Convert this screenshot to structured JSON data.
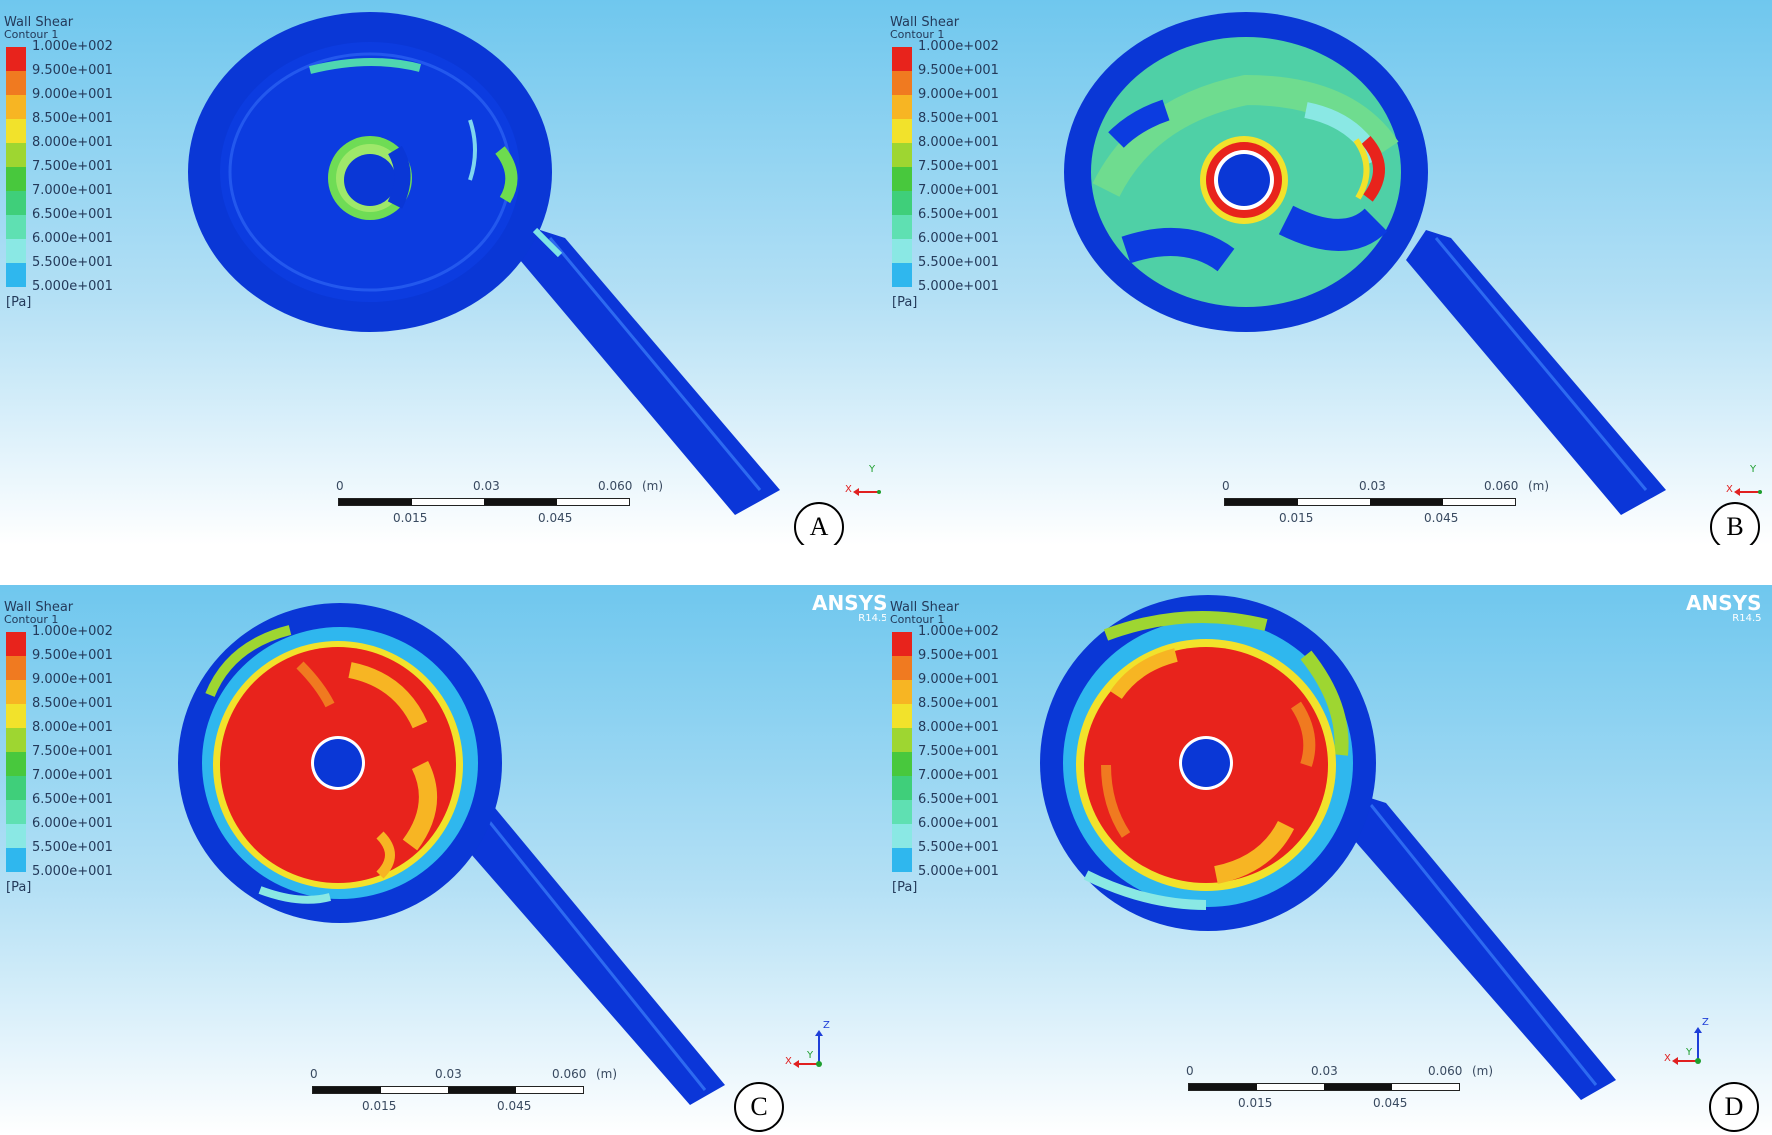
{
  "legend": {
    "title": "Wall Shear",
    "subtitle": "Contour 1",
    "unit": "[Pa]",
    "ticks": [
      "1.000e+002",
      "9.500e+001",
      "9.000e+001",
      "8.500e+001",
      "8.000e+001",
      "7.500e+001",
      "7.000e+001",
      "6.500e+001",
      "6.000e+001",
      "5.500e+001",
      "5.000e+001"
    ],
    "colors": [
      "#e8231c",
      "#f07a20",
      "#f7b523",
      "#f2e22b",
      "#9ed631",
      "#48c83d",
      "#3fcf7a",
      "#5fe0b2",
      "#8ae8e4",
      "#2fb7ee"
    ]
  },
  "scale_bar": {
    "top_labels": [
      "0",
      "0.03",
      "0.060",
      "(m)"
    ],
    "bottom_labels": [
      "0.015",
      "0.045"
    ]
  },
  "triad": {
    "x": "X",
    "y": "Y",
    "z": "Z"
  },
  "watermark": {
    "name": "ANSYS",
    "version": "R14.5"
  },
  "panels": [
    {
      "label": "A",
      "show_ansys": false,
      "show_z": false
    },
    {
      "label": "B",
      "show_ansys": false,
      "show_z": false
    },
    {
      "label": "C",
      "show_ansys": true,
      "show_z": true
    },
    {
      "label": "D",
      "show_ansys": true,
      "show_z": true
    }
  ]
}
